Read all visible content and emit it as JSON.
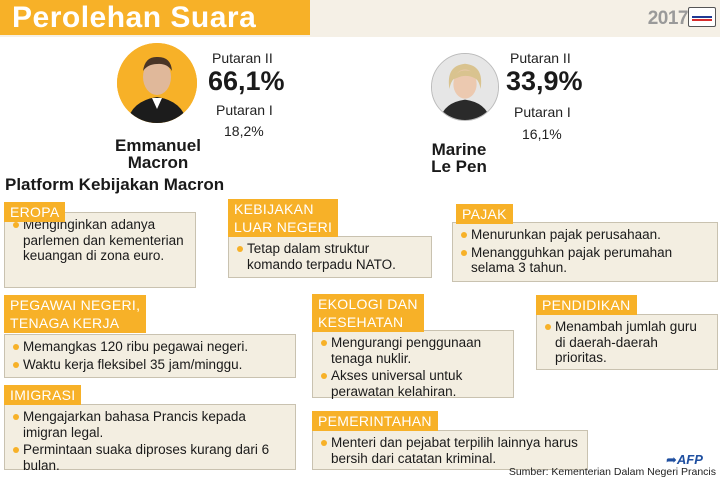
{
  "header": {
    "title": "Perolehan Suara",
    "year": "2017"
  },
  "colors": {
    "accent": "#f7b128",
    "card_bg": "#f3eee1",
    "afp_blue": "#1f4fa0"
  },
  "candidates": {
    "macron": {
      "name_line1": "Emmanuel",
      "name_line2": "Macron",
      "round2_label": "Putaran II",
      "round2_pct": "66,1%",
      "round1_label": "Putaran I",
      "round1_pct": "18,2%"
    },
    "lepen": {
      "name_line1": "Marine",
      "name_line2": "Le Pen",
      "round2_label": "Putaran II",
      "round2_pct": "33,9%",
      "round1_label": "Putaran I",
      "round1_pct": "16,1%"
    }
  },
  "platform": {
    "title": "Platform Kebijakan Macron",
    "eropa": {
      "tag": "EROPA",
      "items": [
        "Menginginkan adanya parlemen dan kementerian keuangan di zona euro."
      ]
    },
    "luar_negeri": {
      "tag_line1": "KEBIJAKAN",
      "tag_line2": "LUAR NEGERI",
      "items": [
        "Tetap dalam struktur komando terpadu NATO."
      ]
    },
    "pajak": {
      "tag": "PAJAK",
      "items": [
        "Menurunkan pajak perusahaan.",
        "Menangguhkan pajak perumahan selama 3 tahun."
      ]
    },
    "pegawai": {
      "tag_line1": "PEGAWAI NEGERI,",
      "tag_line2": "TENAGA KERJA",
      "items": [
        "Memangkas 120 ribu pegawai negeri.",
        "Waktu kerja fleksibel 35 jam/minggu."
      ]
    },
    "ekologi": {
      "tag_line1": "EKOLOGI DAN",
      "tag_line2": "KESEHATAN",
      "items": [
        "Mengurangi penggunaan tenaga nuklir.",
        "Akses universal untuk perawatan kelahiran."
      ]
    },
    "pendidikan": {
      "tag": "PENDIDIKAN",
      "items": [
        "Menambah jumlah guru di daerah-daerah prioritas."
      ]
    },
    "imigrasi": {
      "tag": "IMIGRASI",
      "items": [
        "Mengajarkan bahasa Prancis kepada imigran legal.",
        "Permintaan suaka diproses kurang dari 6 bulan."
      ]
    },
    "pemerintahan": {
      "tag": "PEMERINTAHAN",
      "items": [
        "Menteri dan pejabat terpilih lainnya harus bersih dari catatan kriminal."
      ]
    }
  },
  "footer": {
    "logo": "AFP",
    "source": "Sumber: Kementerian Dalam Negeri Prancis"
  }
}
